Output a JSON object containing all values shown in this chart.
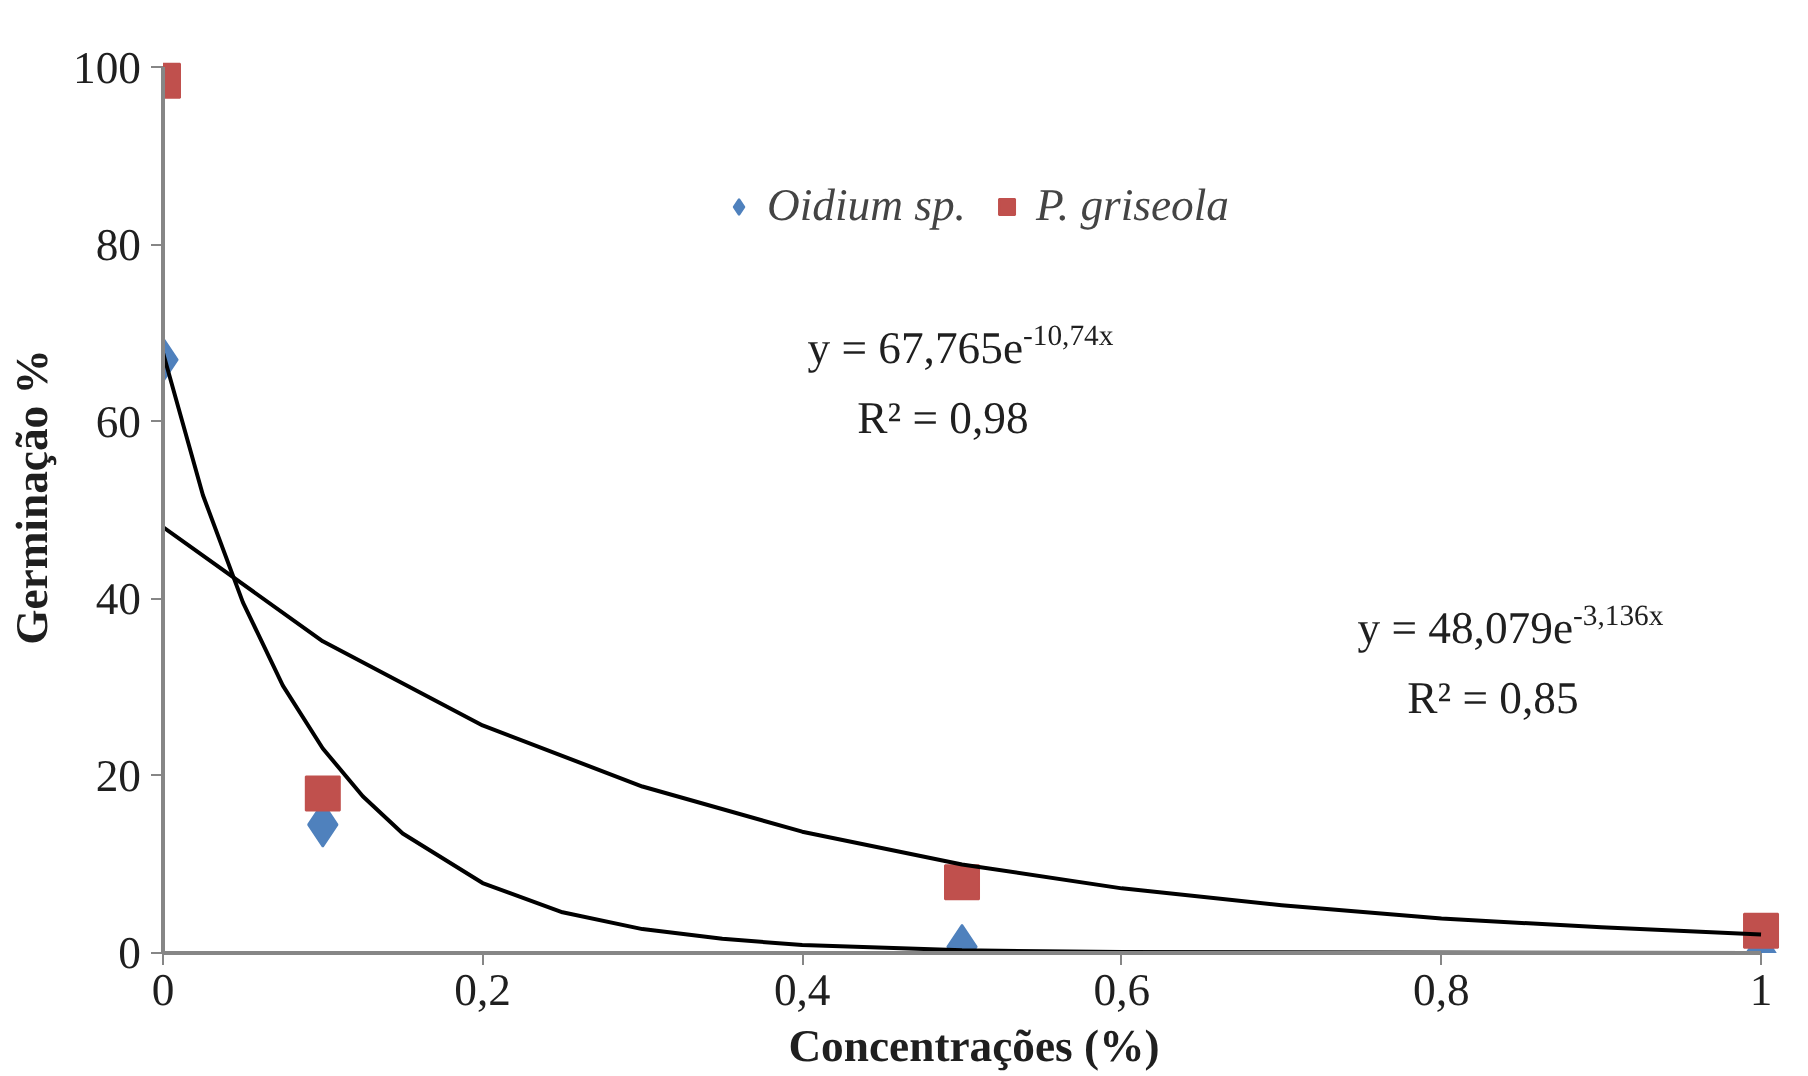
{
  "chart_data": {
    "type": "scatter",
    "xlabel": "Concentrações (%)",
    "ylabel": "Germinação %",
    "x": [
      0,
      0.1,
      0.5,
      1
    ],
    "series": [
      {
        "name": "Oidium sp.",
        "color": "#4f81bd",
        "marker": "diamond",
        "values": [
          67,
          14.5,
          0.7,
          0
        ]
      },
      {
        "name": "P. griseola",
        "color": "#c0504d",
        "marker": "square",
        "values": [
          98.5,
          18,
          8,
          2.5
        ]
      },
      {
        "type": "line",
        "color": "#000000",
        "marker": "none",
        "x": [
          0,
          0.025,
          0.05,
          0.075,
          0.1,
          0.125,
          0.15,
          0.2,
          0.25,
          0.3,
          0.35,
          0.4,
          0.5,
          0.6,
          1
        ],
        "values": [
          67.8,
          51.7,
          39.6,
          30.2,
          23.1,
          17.7,
          13.5,
          7.9,
          4.6,
          2.7,
          1.6,
          0.9,
          0.3,
          0.1,
          0
        ]
      },
      {
        "type": "line",
        "color": "#000000",
        "marker": "none",
        "x": [
          0,
          0.1,
          0.2,
          0.3,
          0.4,
          0.5,
          0.6,
          0.7,
          0.8,
          0.9,
          1
        ],
        "values": [
          48.1,
          35.2,
          25.7,
          18.8,
          13.7,
          10.0,
          7.3,
          5.4,
          3.9,
          2.9,
          2.1
        ]
      }
    ],
    "annotations": [
      "y = 67,765e$^{-10,74x}$",
      "R² = 0,98",
      "y = 48,079e$^{-3,136x}$",
      "R² = 0,85"
    ],
    "xlim": [
      0,
      1
    ],
    "xticks": [
      0,
      {
        "value": 0.2,
        "label": "0,2"
      },
      {
        "value": 0.4,
        "label": "0,4"
      },
      {
        "value": 0.6,
        "label": "0,6"
      },
      {
        "value": 0.8,
        "label": "0,8"
      },
      1
    ],
    "ylim": [
      0,
      100
    ],
    "yticks": [
      0,
      20,
      40,
      60,
      80,
      100
    ],
    "grid": false,
    "legend": "top",
    "line_style": "solid"
  }
}
